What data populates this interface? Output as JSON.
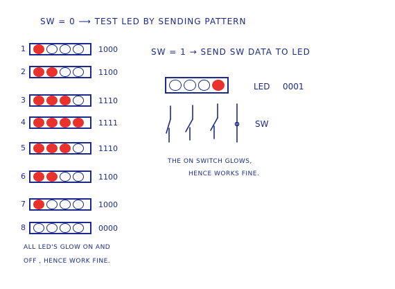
{
  "title": "SW = 0  ⟶  TEST LED BY SENDING PATTERN",
  "mode1": "SW = 1 → SEND   SW DATA TO LED",
  "rows": [
    {
      "label": "1",
      "leds": [
        1,
        0,
        0,
        0
      ],
      "value": "1000"
    },
    {
      "label": "2",
      "leds": [
        1,
        1,
        0,
        0
      ],
      "value": "1100"
    },
    {
      "label": "3",
      "leds": [
        1,
        1,
        1,
        0
      ],
      "value": "1110"
    },
    {
      "label": "4",
      "leds": [
        1,
        1,
        1,
        1
      ],
      "value": "1111"
    },
    {
      "label": "5",
      "leds": [
        1,
        1,
        1,
        0
      ],
      "value": "1110"
    },
    {
      "label": "6",
      "leds": [
        1,
        1,
        0,
        0
      ],
      "value": "1100"
    },
    {
      "label": "7",
      "leds": [
        1,
        0,
        0,
        0
      ],
      "value": "1000"
    },
    {
      "label": "8",
      "leds": [
        0,
        0,
        0,
        0
      ],
      "value": "0000"
    }
  ],
  "led_panel": {
    "leds": [
      0,
      0,
      0,
      1
    ],
    "label": "LED",
    "value": "0001"
  },
  "switch_label": "SW",
  "note_left": [
    "ALL LED'S GLOW ON AND",
    "OFF , HENCE WORK FINE."
  ],
  "note_right": [
    "THE  ON SWITCH GLOWS,",
    "HENCE  WORKS FINE."
  ],
  "colors": {
    "ink": "#1a2a8c",
    "led_on": "#e8322b"
  }
}
